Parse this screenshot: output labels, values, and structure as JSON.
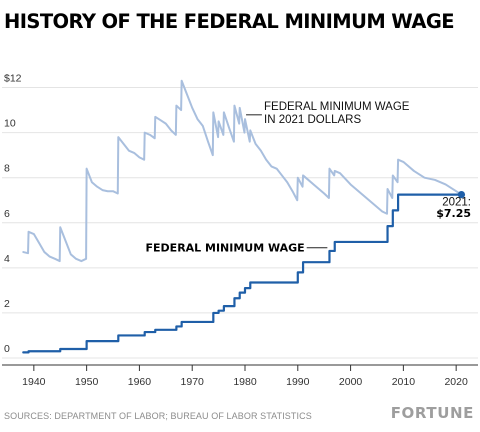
{
  "title": "HISTORY OF THE FEDERAL MINIMUM WAGE",
  "source": "SOURCES: DEPARTMENT OF LABOR; BUREAU OF LABOR STATISTICS",
  "brand": "FORTUNE",
  "colors": {
    "nominal": "#1f5fa8",
    "real": "#a9bfde",
    "grid": "#e4e4e4"
  },
  "chart_data": {
    "type": "line",
    "title": "HISTORY OF THE FEDERAL MINIMUM WAGE",
    "xlim": [
      1937,
      2023
    ],
    "ylim": [
      0,
      13
    ],
    "x_ticks": [
      1940,
      1950,
      1960,
      1970,
      1980,
      1990,
      2000,
      2010,
      2020
    ],
    "y_ticks": [
      0,
      2,
      4,
      6,
      8,
      10,
      12
    ],
    "y_tick_labels": [
      "0",
      "2",
      "4",
      "6",
      "8",
      "10",
      "$12"
    ],
    "grid": "horizontal",
    "series": [
      {
        "name": "FEDERAL MINIMUM WAGE",
        "color": "#1f5fa8",
        "step": true,
        "x": [
          1938,
          1939,
          1945,
          1950,
          1956,
          1961,
          1963,
          1967,
          1968,
          1974,
          1975,
          1976,
          1978,
          1979,
          1980,
          1981,
          1990,
          1991,
          1996,
          1997,
          2007,
          2008,
          2009,
          2021
        ],
        "y": [
          0.25,
          0.3,
          0.4,
          0.75,
          1.0,
          1.15,
          1.25,
          1.4,
          1.6,
          2.0,
          2.1,
          2.3,
          2.65,
          2.9,
          3.1,
          3.35,
          3.8,
          4.25,
          4.75,
          5.15,
          5.85,
          6.55,
          7.25,
          7.25
        ]
      },
      {
        "name": "FEDERAL MINIMUM WAGE IN 2021 DOLLARS",
        "color": "#a9bfde",
        "step": false,
        "x": [
          1938,
          1938.9,
          1939,
          1940,
          1941,
          1942,
          1943,
          1944,
          1944.9,
          1945,
          1946,
          1947,
          1948,
          1949,
          1949.9,
          1950,
          1951,
          1952,
          1953,
          1954,
          1955,
          1955.9,
          1956,
          1957,
          1958,
          1959,
          1960,
          1960.9,
          1961,
          1962,
          1962.9,
          1963,
          1964,
          1965,
          1966,
          1966.9,
          1967,
          1967.9,
          1968,
          1969,
          1970,
          1971,
          1972,
          1973,
          1973.9,
          1974,
          1974.9,
          1975,
          1975.9,
          1976,
          1977,
          1977.9,
          1978,
          1978.9,
          1979,
          1979.9,
          1980,
          1980.9,
          1981,
          1982,
          1983,
          1984,
          1985,
          1986,
          1987,
          1988,
          1989,
          1989.9,
          1990,
          1990.9,
          1991,
          1992,
          1993,
          1994,
          1995,
          1995.9,
          1996,
          1996.9,
          1997,
          1998,
          2000,
          2002,
          2004,
          2006,
          2006.9,
          2007,
          2007.9,
          2008,
          2008.9,
          2009,
          2010,
          2012,
          2014,
          2016,
          2018,
          2020,
          2021
        ],
        "y": [
          4.7,
          4.65,
          5.6,
          5.5,
          5.1,
          4.7,
          4.5,
          4.4,
          4.3,
          5.8,
          5.2,
          4.6,
          4.4,
          4.3,
          4.4,
          8.4,
          7.8,
          7.6,
          7.45,
          7.4,
          7.4,
          7.3,
          9.8,
          9.5,
          9.2,
          9.1,
          8.9,
          8.8,
          10.0,
          9.9,
          9.75,
          10.7,
          10.55,
          10.4,
          10.1,
          9.9,
          11.2,
          11.0,
          12.3,
          11.7,
          11.1,
          10.6,
          10.3,
          9.6,
          9.0,
          10.9,
          9.8,
          10.5,
          9.9,
          10.9,
          10.2,
          9.6,
          11.2,
          10.4,
          11.1,
          10.0,
          10.6,
          9.6,
          10.1,
          9.5,
          9.2,
          8.8,
          8.5,
          8.4,
          8.1,
          7.8,
          7.4,
          7.0,
          8.0,
          7.6,
          8.1,
          7.9,
          7.7,
          7.5,
          7.3,
          7.1,
          8.4,
          8.1,
          8.3,
          8.2,
          7.7,
          7.3,
          6.9,
          6.5,
          6.4,
          7.5,
          7.1,
          8.1,
          7.8,
          8.8,
          8.7,
          8.3,
          8.0,
          7.9,
          7.7,
          7.4,
          7.25
        ]
      }
    ],
    "annotations": [
      {
        "text": "FEDERAL MINIMUM WAGE",
        "line2": "IN 2021 DOLLARS",
        "x": 1978.5,
        "y": 11.1
      },
      {
        "text": "FEDERAL MINIMUM WAGE",
        "x": 1991.5,
        "y": 4.85,
        "bold": true
      },
      {
        "text": "2021:",
        "value_label": "$7.25",
        "x": 2021,
        "y": 7.25
      }
    ]
  }
}
